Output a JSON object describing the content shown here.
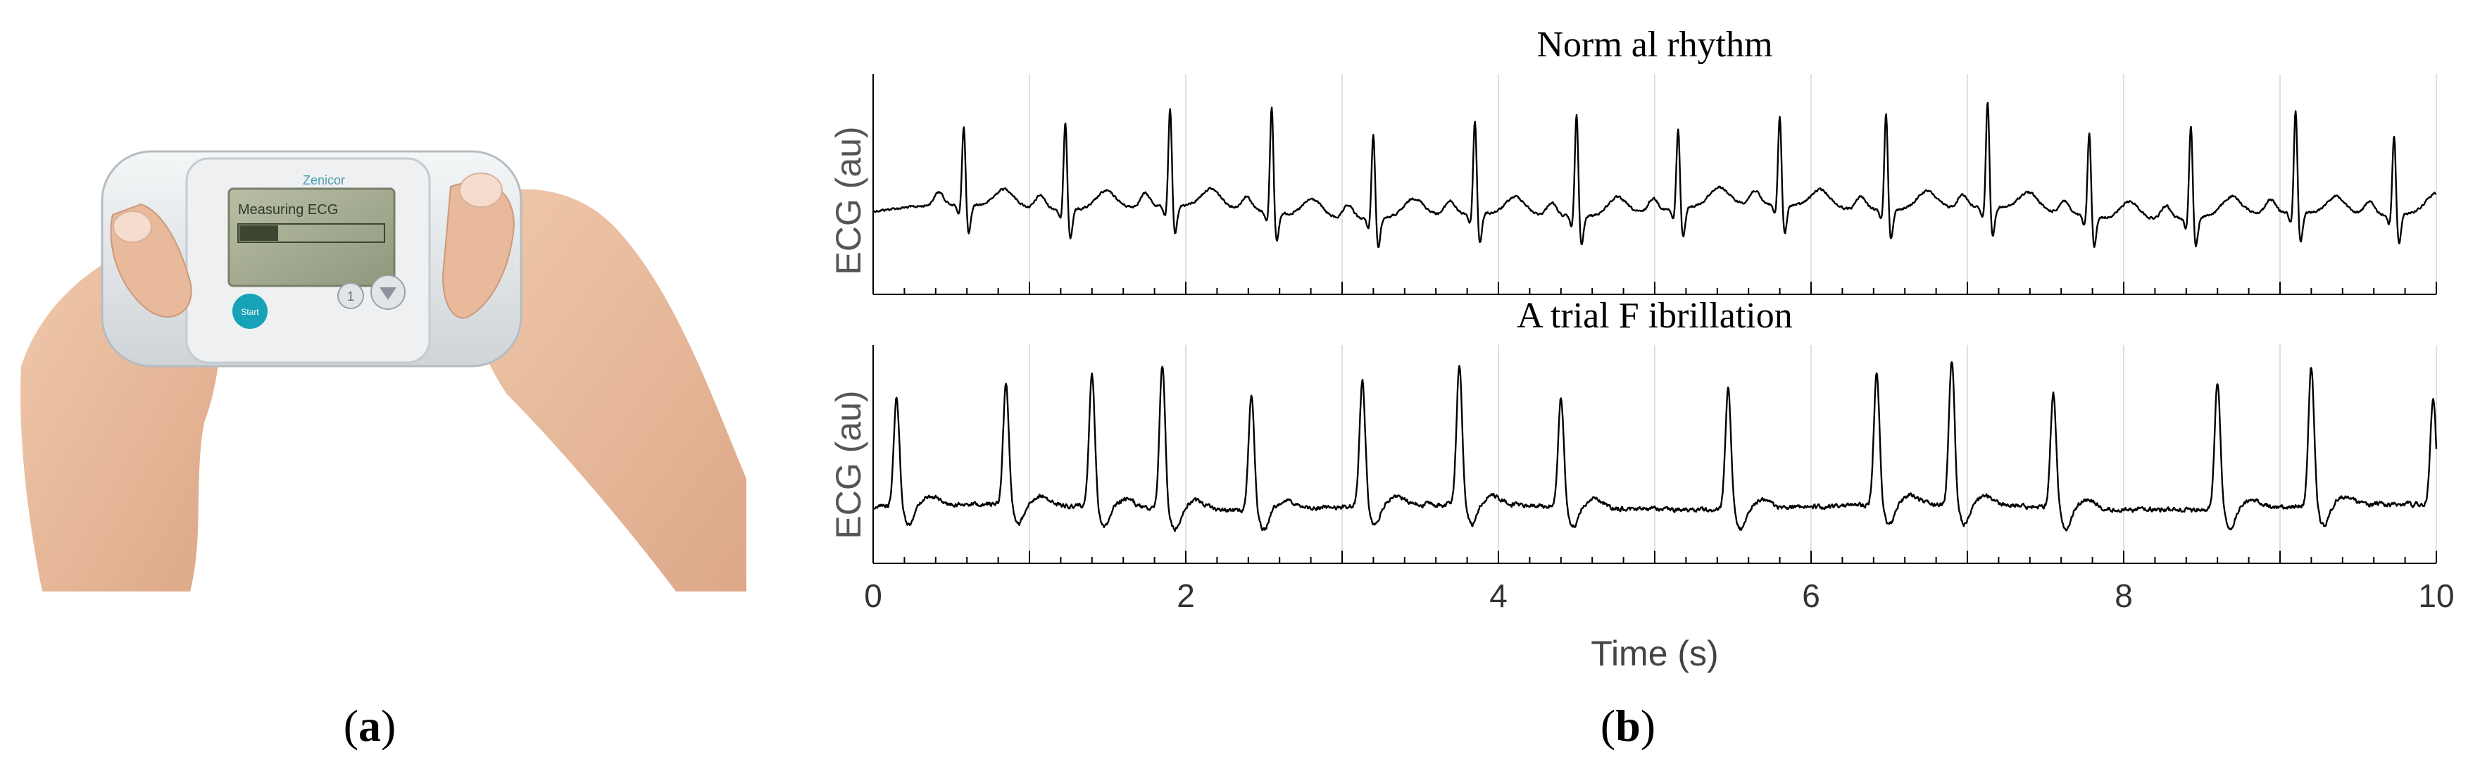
{
  "panel_a": {
    "label_open": "(",
    "label_letter": "a",
    "label_close": ")",
    "device": {
      "brand": "Zenicor",
      "screen_text": "Measuring ECG",
      "start_button": "Start",
      "button_1": "1",
      "device_color": "#e4e7ea",
      "accent_color": "#17a2b8"
    }
  },
  "panel_b": {
    "label_open": "(",
    "label_letter": "b",
    "label_close": ")"
  },
  "chart_data": [
    {
      "type": "line",
      "title": "Norm al rhythm",
      "xlabel": "",
      "ylabel": "ECG (au)",
      "xlim": [
        0,
        10
      ],
      "grid": true,
      "yticks": "none",
      "beat_times": [
        0.58,
        1.23,
        1.9,
        2.55,
        3.2,
        3.85,
        4.5,
        5.15,
        5.8,
        6.48,
        7.13,
        7.78,
        8.43,
        9.1,
        9.73
      ],
      "line_color": "#000000"
    },
    {
      "type": "line",
      "title": "A trial F ibrillation",
      "xlabel": "Time (s)",
      "ylabel": "ECG (au)",
      "xlim": [
        0,
        10
      ],
      "xticks": [
        0,
        2,
        4,
        6,
        8,
        10
      ],
      "grid": true,
      "yticks": "none",
      "beat_times": [
        0.15,
        0.85,
        1.4,
        1.85,
        2.42,
        3.13,
        3.75,
        4.4,
        5.47,
        6.42,
        6.9,
        7.55,
        8.6,
        9.2,
        9.98
      ],
      "line_color": "#000000"
    }
  ]
}
